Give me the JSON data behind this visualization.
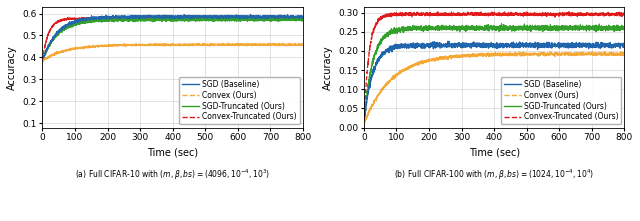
{
  "left": {
    "ylabel": "Accuracy",
    "xlabel": "Time (sec)",
    "subtitle": "(a) Full CIFAR-10 with $(m, \\beta, bs) = (4096, 10^{-4}, 10^3)$",
    "xlim": [
      0,
      800
    ],
    "ylim": [
      0.08,
      0.63
    ],
    "yticks": [
      0.1,
      0.2,
      0.3,
      0.4,
      0.5,
      0.6
    ],
    "xticks": [
      0,
      100,
      200,
      300,
      400,
      500,
      600,
      700,
      800
    ],
    "curves": {
      "sgd": {
        "color": "#2166ac",
        "style": "solid",
        "label": "SGD (Baseline)",
        "v0": 0.385,
        "v1": 0.585,
        "k": 0.022,
        "noise": 0.003,
        "seed": 1
      },
      "convex": {
        "color": "#f4a836",
        "style": "dashed",
        "label": "Convex (Ours)",
        "v0": 0.385,
        "v1": 0.458,
        "k": 0.014,
        "noise": 0.002,
        "seed": 2
      },
      "sgd_trunc": {
        "color": "#33a02c",
        "style": "solid",
        "label": "SGD-Truncated (Ours)",
        "v0": 0.385,
        "v1": 0.572,
        "k": 0.022,
        "noise": 0.003,
        "seed": 3
      },
      "convex_trunc": {
        "color": "#e0191b",
        "style": "dashed",
        "label": "Convex-Truncated (Ours)",
        "v0": 0.385,
        "v1": 0.577,
        "k": 0.055,
        "noise": 0.002,
        "seed": 4
      }
    },
    "curve_order": [
      "convex_trunc",
      "sgd_trunc",
      "sgd",
      "convex"
    ]
  },
  "right": {
    "ylabel": "Accuracy",
    "xlabel": "Time (sec)",
    "subtitle": "(b) Full CIFAR-100 with $(m, \\beta, bs) = (1024, 10^{-4}, 10^4)$",
    "xlim": [
      0,
      800
    ],
    "ylim": [
      0.0,
      0.315
    ],
    "yticks": [
      0.0,
      0.05,
      0.1,
      0.15,
      0.2,
      0.25,
      0.3
    ],
    "xticks": [
      0,
      100,
      200,
      300,
      400,
      500,
      600,
      700,
      800
    ],
    "curves": {
      "sgd": {
        "color": "#2166ac",
        "style": "solid",
        "label": "SGD (Baseline)",
        "v0": 0.01,
        "v1": 0.215,
        "k": 0.038,
        "noise": 0.003,
        "seed": 5
      },
      "convex": {
        "color": "#f4a836",
        "style": "dashed",
        "label": "Convex (Ours)",
        "v0": 0.01,
        "v1": 0.192,
        "k": 0.012,
        "noise": 0.002,
        "seed": 6
      },
      "sgd_trunc": {
        "color": "#33a02c",
        "style": "solid",
        "label": "SGD-Truncated (Ours)",
        "v0": 0.01,
        "v1": 0.26,
        "k": 0.038,
        "noise": 0.003,
        "seed": 7
      },
      "convex_trunc": {
        "color": "#e0191b",
        "style": "dashed",
        "label": "Convex-Truncated (Ours)",
        "v0": 0.01,
        "v1": 0.296,
        "k": 0.065,
        "noise": 0.002,
        "seed": 8
      }
    },
    "curve_order": [
      "convex_trunc",
      "sgd_trunc",
      "sgd",
      "convex"
    ]
  },
  "legend_order": [
    "sgd",
    "convex",
    "sgd_trunc",
    "convex_trunc"
  ],
  "fig_width": 6.4,
  "fig_height": 2.21,
  "dpi": 100
}
